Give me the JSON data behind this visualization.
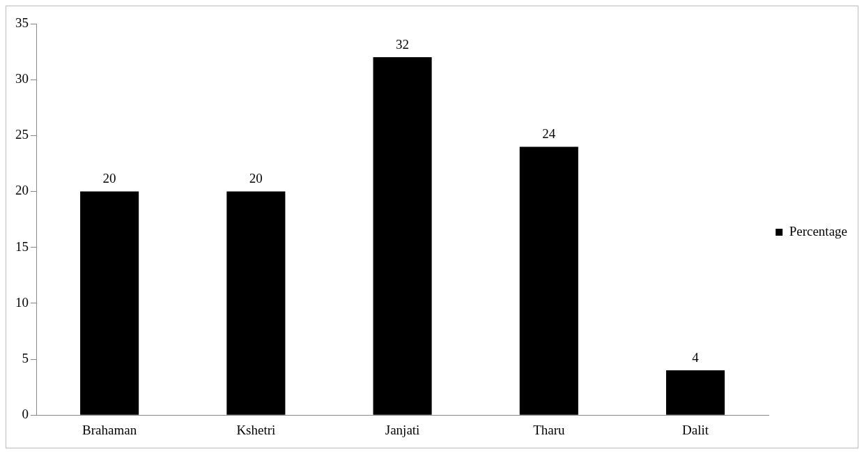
{
  "chart_data": {
    "type": "bar",
    "categories": [
      "Brahaman",
      "Kshetri",
      "Janjati",
      "Tharu",
      "Dalit"
    ],
    "series": [
      {
        "name": "Percentage",
        "color": "#000000",
        "values": [
          20,
          20,
          32,
          24,
          4
        ]
      }
    ],
    "ylim": [
      0,
      35
    ],
    "yticks": [
      0,
      5,
      10,
      15,
      20,
      25,
      30,
      35
    ],
    "grid": false,
    "legend": "right",
    "data_labels": true
  }
}
